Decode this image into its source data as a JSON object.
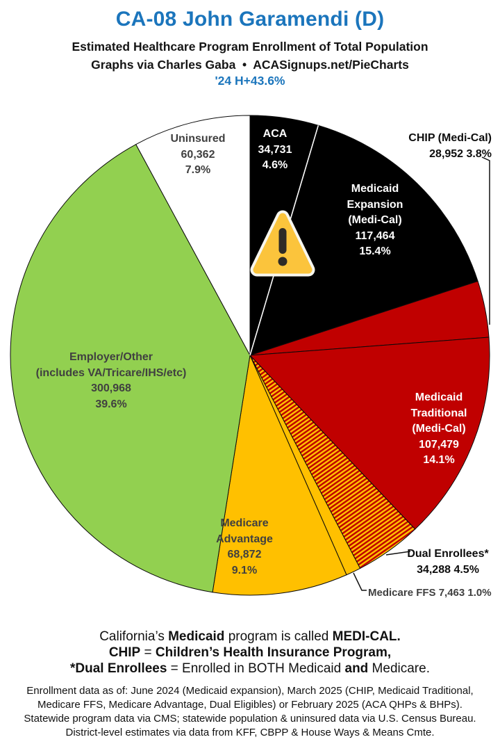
{
  "header": {
    "title": "CA-08 John Garamendi (D)",
    "subtitle1": "Estimated Healthcare Program Enrollment of Total Population",
    "subtitle2": "Graphs via Charles Gaba  •  ACASignups.net/PieCharts",
    "highlight": "'24 H+43.6%"
  },
  "colors": {
    "title_blue": "#1B75BC",
    "label_gray": "#404040",
    "pie_black": "#000000",
    "pie_red": "#C00000",
    "pie_yellow": "#FFC000",
    "pie_green": "#92D050",
    "pie_white": "#FFFFFF",
    "warning_amber": "#FBC43C"
  },
  "icons": {
    "warning": "warning-triangle-exclamation"
  },
  "chart_data": {
    "type": "pie",
    "title": "Estimated Healthcare Program Enrollment of Total Population",
    "start": "12 o'clock, clockwise",
    "legend_position": "labels on/beside slices",
    "slices": [
      {
        "id": "aca",
        "name": "ACA",
        "value": 34731,
        "pct": 4.6,
        "fill": "#000000",
        "lines": [
          "ACA",
          "34,731",
          "4.6%"
        ]
      },
      {
        "id": "medicaid-expansion",
        "name": "Medicaid Expansion (Medi-Cal)",
        "value": 117464,
        "pct": 15.4,
        "fill": "#000000",
        "lines": [
          "Medicaid",
          "Expansion",
          "(Medi-Cal)",
          "117,464",
          "15.4%"
        ]
      },
      {
        "id": "chip",
        "name": "CHIP (Medi-Cal)",
        "value": 28952,
        "pct": 3.8,
        "fill": "#C00000",
        "lines": [
          "CHIP (Medi-Cal)",
          "28,952 3.8%"
        ]
      },
      {
        "id": "medicaid-traditional",
        "name": "Medicaid Traditional (Medi-Cal)",
        "value": 107479,
        "pct": 14.1,
        "fill": "#C00000",
        "lines": [
          "Medicaid",
          "Traditional",
          "(Medi-Cal)",
          "107,479",
          "14.1%"
        ]
      },
      {
        "id": "dual-enrollees",
        "name": "Dual Enrollees*",
        "value": 34288,
        "pct": 4.5,
        "fill": "stripes",
        "lines": [
          "Dual Enrollees*",
          "34,288 4.5%"
        ]
      },
      {
        "id": "medicare-ffs",
        "name": "Medicare FFS",
        "value": 7463,
        "pct": 1.0,
        "fill": "#FFC000",
        "lines": [
          "Medicare FFS 7,463 1.0%"
        ]
      },
      {
        "id": "medicare-advantage",
        "name": "Medicare Advantage",
        "value": 68872,
        "pct": 9.1,
        "fill": "#FFC000",
        "lines": [
          "Medicare",
          "Advantage",
          "68,872",
          "9.1%"
        ]
      },
      {
        "id": "employer-other",
        "name": "Employer/Other (includes VA/Tricare/IHS/etc)",
        "value": 300968,
        "pct": 39.6,
        "fill": "#92D050",
        "lines": [
          "Employer/Other",
          "(includes VA/Tricare/IHS/etc)",
          "300,968",
          "39.6%"
        ]
      },
      {
        "id": "uninsured",
        "name": "Uninsured",
        "value": 60362,
        "pct": 7.9,
        "fill": "#FFFFFF",
        "lines": [
          "Uninsured",
          "60,362",
          "7.9%"
        ]
      }
    ]
  },
  "notes": {
    "lines": [
      {
        "segs": [
          {
            "t": "California’s ",
            "b": 0
          },
          {
            "t": "Medicaid",
            "b": 1
          },
          {
            "t": " program is called ",
            "b": 0
          },
          {
            "t": "MEDI-CAL.",
            "b": 1
          }
        ]
      },
      {
        "segs": [
          {
            "t": "CHIP",
            "b": 1
          },
          {
            "t": " = ",
            "b": 0
          },
          {
            "t": "Children’s Health Insurance Program,",
            "b": 1
          }
        ]
      },
      {
        "segs": [
          {
            "t": "*Dual Enrollees",
            "b": 1
          },
          {
            "t": " = Enrolled in BOTH Medicaid ",
            "b": 0
          },
          {
            "t": "and",
            "b": 1
          },
          {
            "t": " Medicare.",
            "b": 0
          }
        ]
      }
    ]
  },
  "footer": {
    "lines": [
      "Enrollment data as of: June 2024 (Medicaid expansion), March 2025 (CHIP, Medicaid Traditional,",
      "Medicare FFS, Medicare Advantage, Dual Eligibles) or February 2025 (ACA QHPs & BHPs).",
      "Statewide program data via CMS; statewide population & uninsured data via U.S. Census Bureau.",
      "District-level estimates via data from KFF, CBPP & House Ways & Means Cmte."
    ]
  }
}
